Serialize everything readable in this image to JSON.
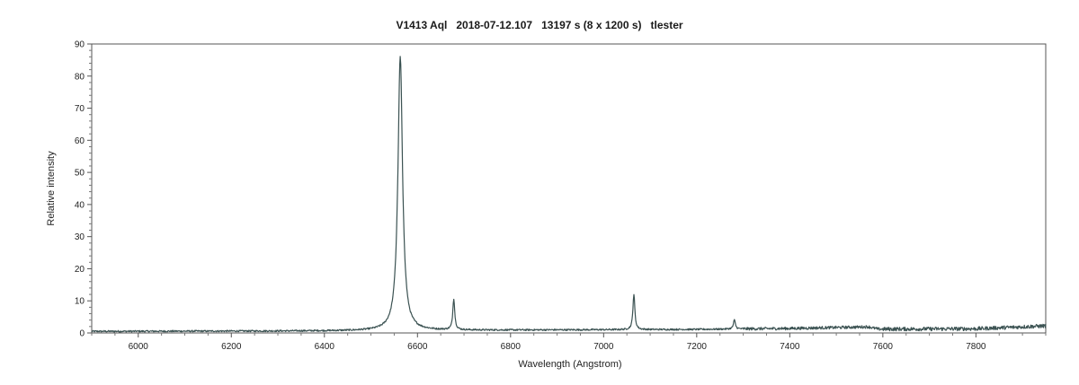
{
  "chart_data": {
    "type": "line",
    "title": "V1413 Aql   2018-07-12.107   13197 s (8 x 1200 s)   tlester",
    "xlabel": "Wavelength (Angstrom)",
    "ylabel": "Relative intensity",
    "xlim": [
      5900,
      7950
    ],
    "ylim": [
      0,
      90
    ],
    "x_ticks": [
      6000,
      6200,
      6400,
      6600,
      6800,
      7000,
      7200,
      7400,
      7600,
      7800
    ],
    "y_ticks": [
      0,
      10,
      20,
      30,
      40,
      50,
      60,
      70,
      80,
      90
    ],
    "grid": false,
    "series": [
      {
        "color": "#3b5252",
        "continuum": [
          [
            5900,
            0.5
          ],
          [
            6300,
            0.6
          ],
          [
            6500,
            0.7
          ],
          [
            6600,
            0.8
          ],
          [
            6800,
            0.9
          ],
          [
            7000,
            1.0
          ],
          [
            7200,
            1.1
          ],
          [
            7400,
            1.4
          ],
          [
            7570,
            1.9
          ],
          [
            7590,
            1.2
          ],
          [
            7800,
            1.3
          ],
          [
            7950,
            2.2
          ]
        ],
        "emission_lines": [
          {
            "x": 6563,
            "peak": 86
          },
          {
            "x": 6678,
            "peak": 10.5
          },
          {
            "x": 7065,
            "peak": 12
          },
          {
            "x": 7281,
            "peak": 4
          }
        ]
      }
    ]
  }
}
